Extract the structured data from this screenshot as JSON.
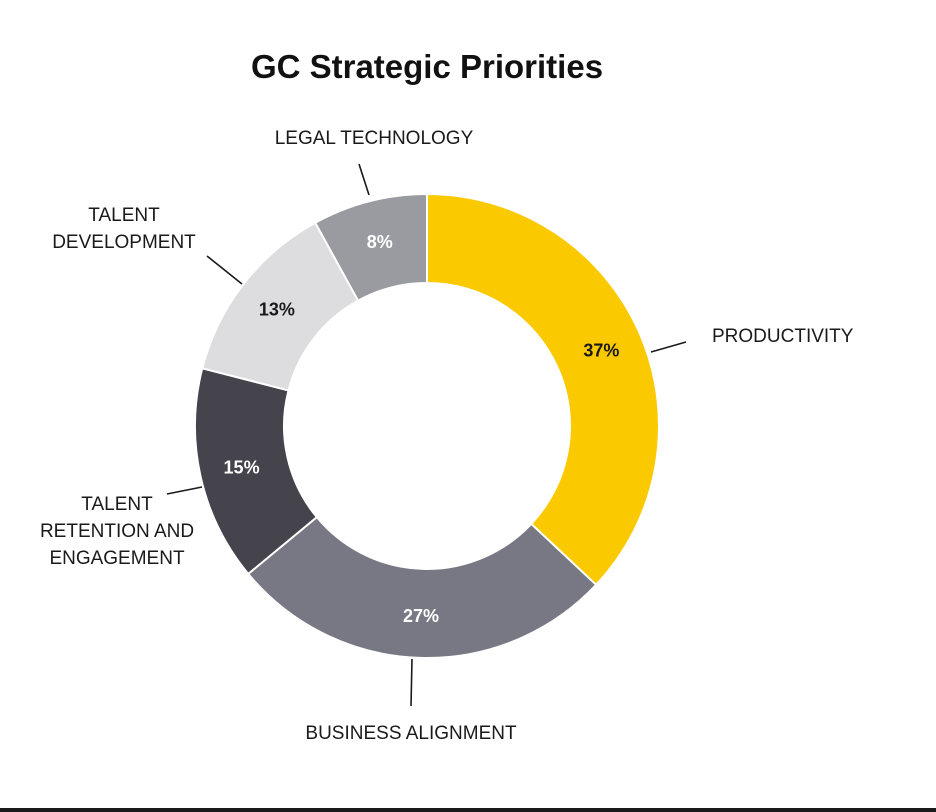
{
  "chart_data": {
    "type": "pie",
    "title": "GC Strategic Priorities",
    "slices": [
      {
        "name": "PRODUCTIVITY",
        "label_lines": [
          "PRODUCTIVITY"
        ],
        "value": 37,
        "value_label": "37%",
        "color": "#FBC900",
        "text_color": "#1a1a1a"
      },
      {
        "name": "BUSINESS ALIGNMENT",
        "label_lines": [
          "BUSINESS ALIGNMENT"
        ],
        "value": 27,
        "value_label": "27%",
        "color": "#777884",
        "text_color": "#ffffff"
      },
      {
        "name": "TALENT RETENTION AND ENGAGEMENT",
        "label_lines": [
          "TALENT",
          "RETENTION AND",
          "ENGAGEMENT"
        ],
        "value": 15,
        "value_label": "15%",
        "color": "#45434B",
        "text_color": "#ffffff"
      },
      {
        "name": "TALENT DEVELOPMENT",
        "label_lines": [
          "TALENT",
          "DEVELOPMENT"
        ],
        "value": 13,
        "value_label": "13%",
        "color": "#DDDDDF",
        "text_color": "#1a1a1a"
      },
      {
        "name": "LEGAL TECHNOLOGY",
        "label_lines": [
          "LEGAL TECHNOLOGY"
        ],
        "value": 8,
        "value_label": "8%",
        "color": "#9A9BA1",
        "text_color": "#ffffff"
      }
    ],
    "donut": true,
    "start": "top",
    "direction": "clockwise"
  }
}
